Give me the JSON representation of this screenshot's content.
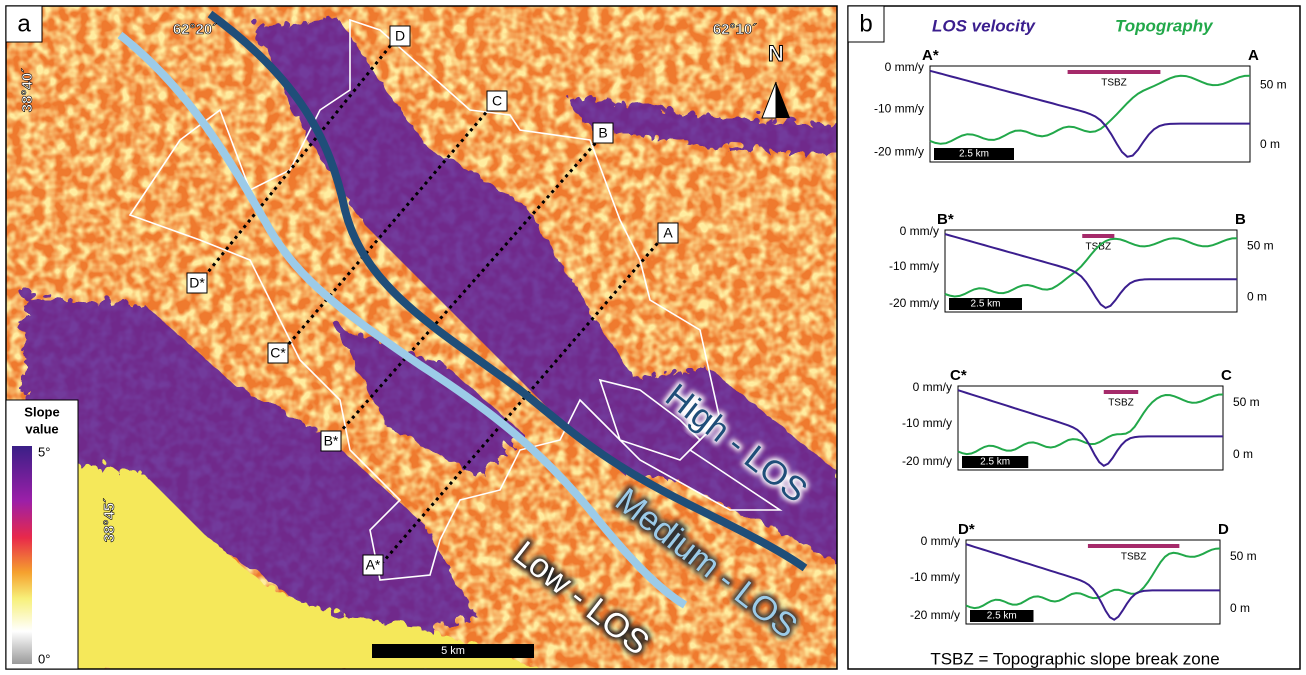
{
  "panel_a": {
    "label": "a",
    "coordinates": {
      "lon_left": "62°20´",
      "lon_right": "62°10´",
      "lat_top": "38°40´",
      "lat_bottom": "38°45´"
    },
    "north": "N",
    "legend": {
      "title_lines": [
        "Slope",
        "value"
      ],
      "max": "5°",
      "min": "0°"
    },
    "profile_ends": [
      "D",
      "C",
      "B",
      "A"
    ],
    "profile_starts": [
      "D*",
      "C*",
      "B*",
      "A*"
    ],
    "zones": [
      "High - LOS",
      "Medium - LOS",
      "Low - LOS"
    ],
    "scale": "5 km"
  },
  "panel_b": {
    "label": "b",
    "legend": [
      {
        "name": "LOS velocity",
        "color": "#3b1e8e"
      },
      {
        "name": "Topography",
        "color": "#22a84a"
      }
    ],
    "profiles": [
      {
        "start": "A*",
        "end": "A",
        "left_ticks": [
          "0 mm/y",
          "-10 mm/y",
          "-20 mm/y"
        ],
        "right_ticks": [
          "50 m",
          "0 m"
        ],
        "zone": "TSBZ",
        "scale": "2.5 km"
      },
      {
        "start": "B*",
        "end": "B",
        "left_ticks": [
          "0 mm/y",
          "-10 mm/y",
          "-20 mm/y"
        ],
        "right_ticks": [
          "50 m",
          "0 m"
        ],
        "zone": "TSBZ",
        "scale": "2.5 km"
      },
      {
        "start": "C*",
        "end": "C",
        "left_ticks": [
          "0 mm/y",
          "-10 mm/y",
          "-20 mm/y"
        ],
        "right_ticks": [
          "50 m",
          "0 m"
        ],
        "zone": "TSBZ",
        "scale": "2.5 km"
      },
      {
        "start": "D*",
        "end": "D",
        "left_ticks": [
          "0 mm/y",
          "-10 mm/y",
          "-20 mm/y"
        ],
        "right_ticks": [
          "50 m",
          "0 m"
        ],
        "zone": "TSBZ",
        "scale": "2.5 km"
      }
    ],
    "footnote": "TSBZ = Topographic slope break zone"
  }
}
